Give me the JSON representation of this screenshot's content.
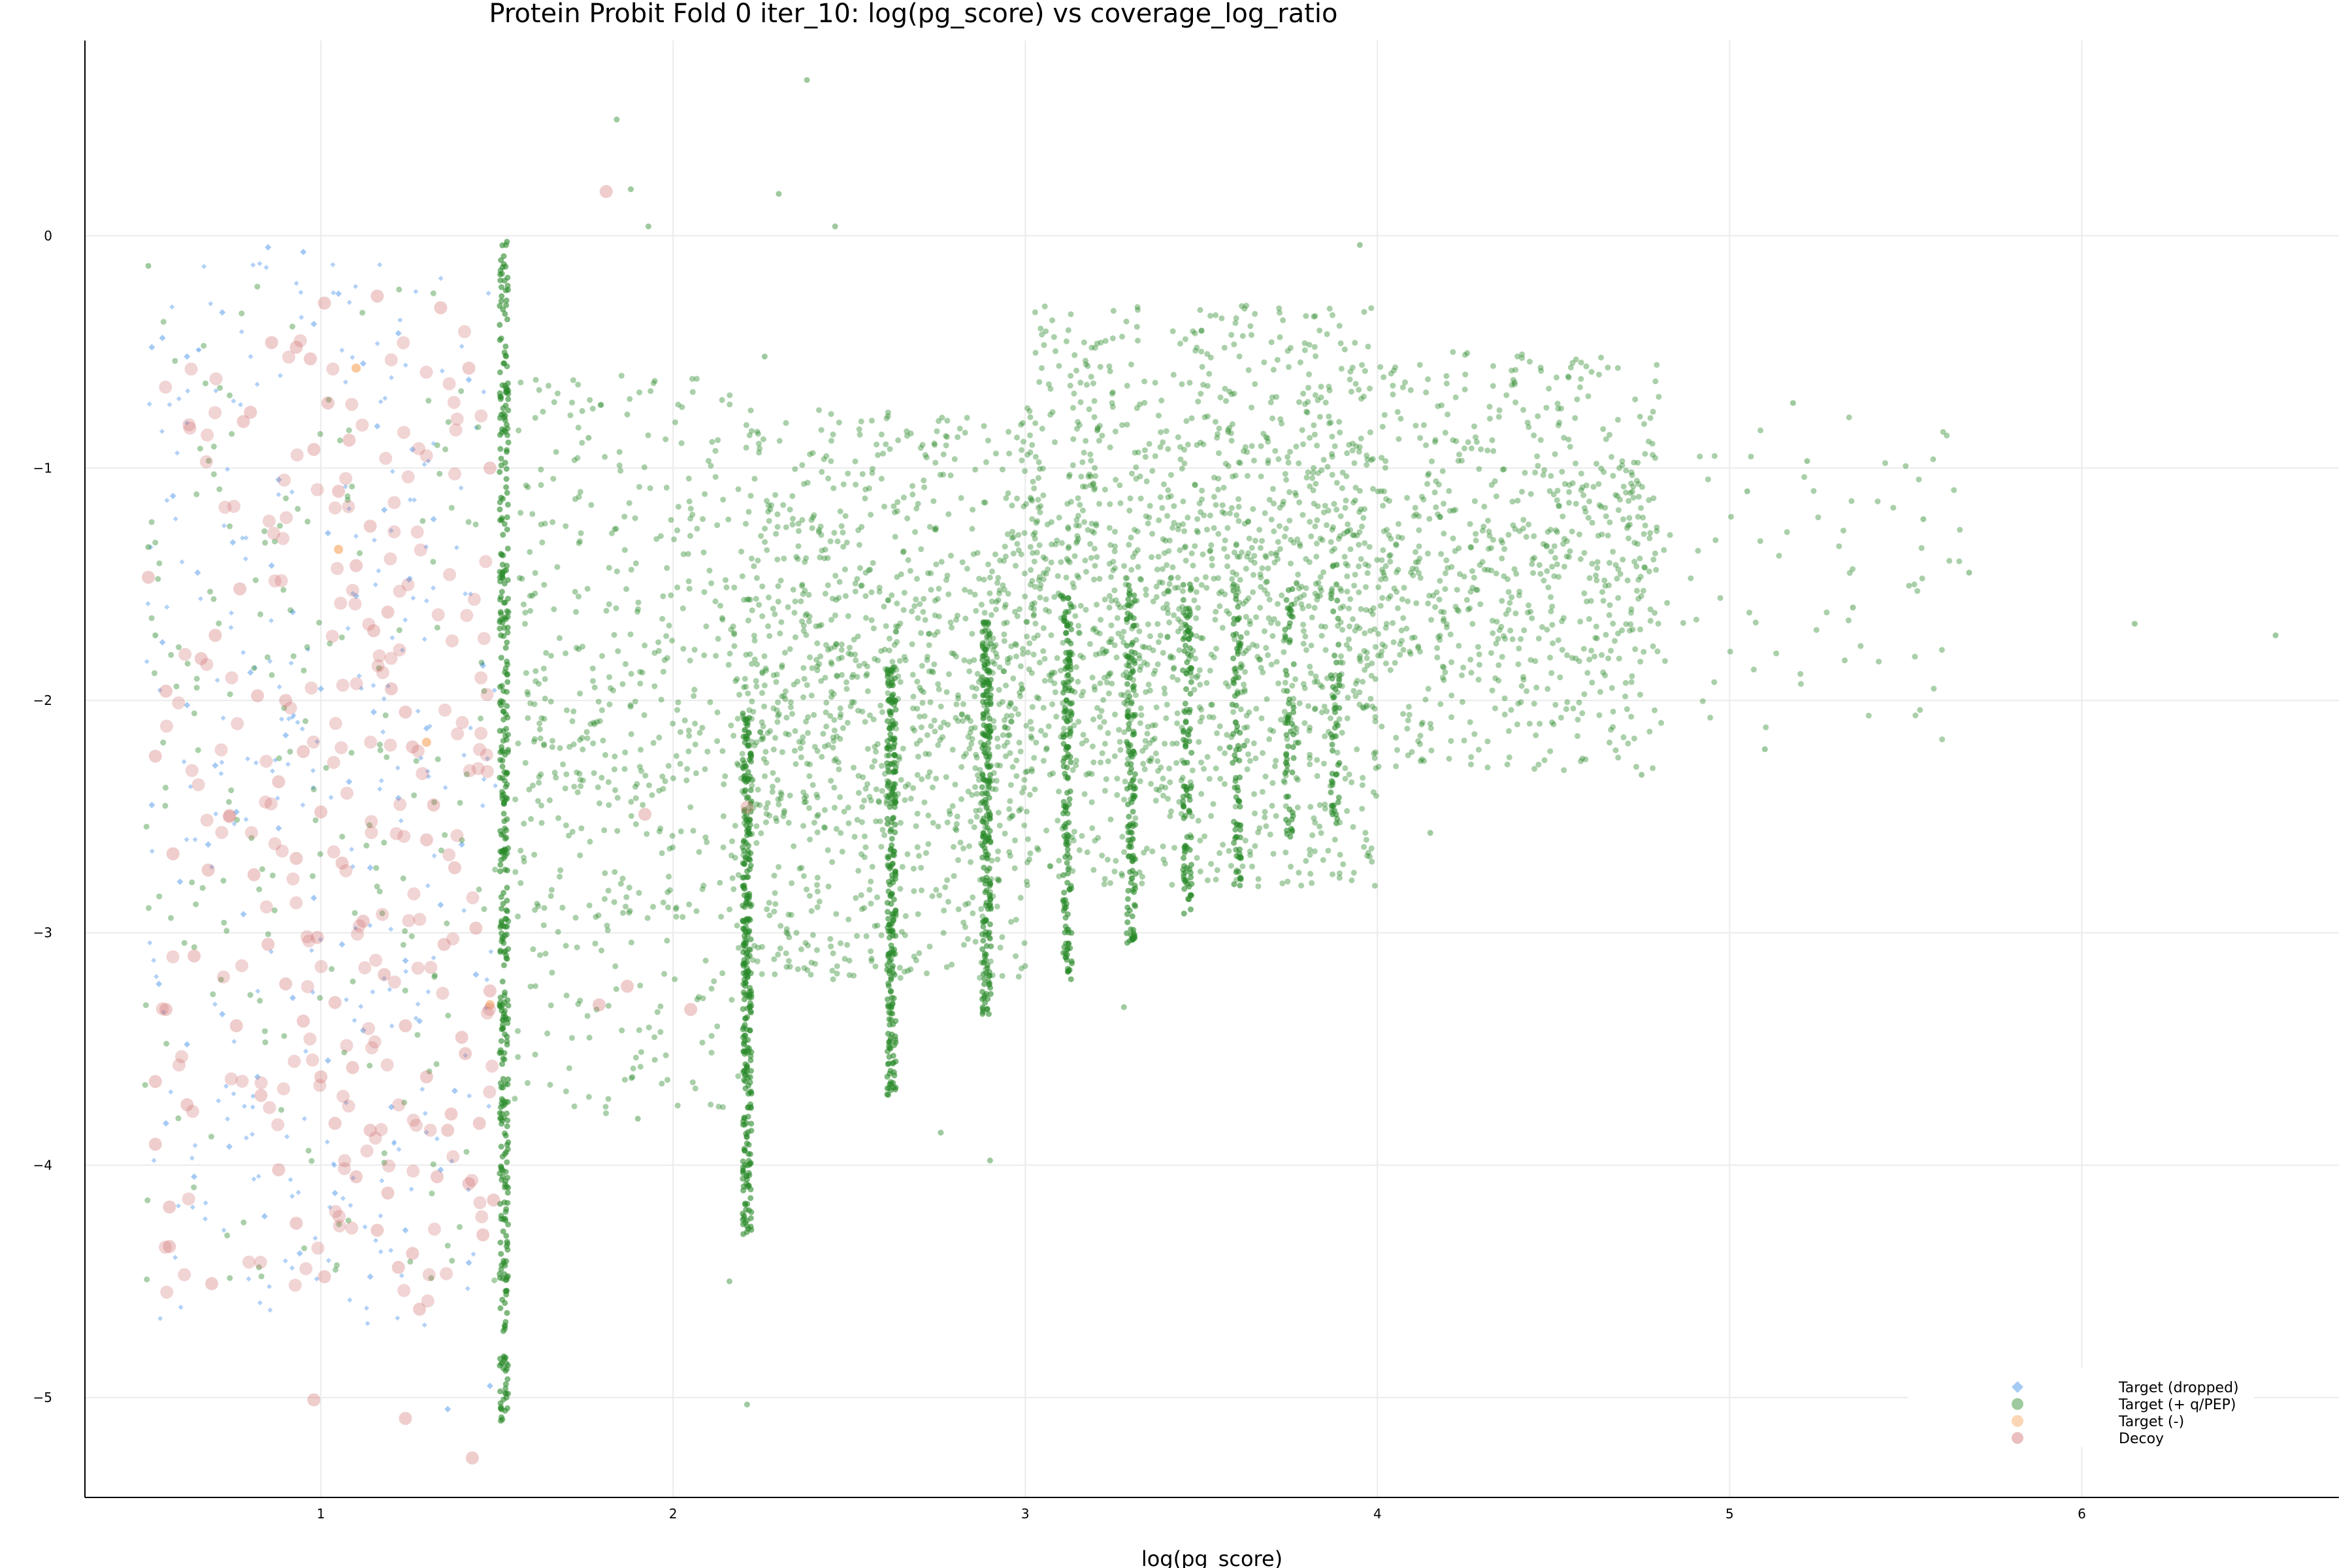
{
  "chart_data": {
    "type": "scatter",
    "title": "Protein Probit Fold 0 iter_10: log(pg_score) vs coverage_log_ratio",
    "xlabel": "log(pg_score)",
    "ylabel": "",
    "xlim": [
      0.33,
      6.73
    ],
    "ylim": [
      -5.43,
      0.84
    ],
    "xticks": [
      1,
      2,
      3,
      4,
      5,
      6
    ],
    "yticks": [
      0,
      -1,
      -2,
      -3,
      -4,
      -5
    ],
    "grid": true,
    "legend_position": "bottom-right",
    "series": [
      {
        "name": "Target (dropped)",
        "color": "#7fb3f0",
        "marker": "diamond",
        "points": [
          [
            0.52,
            -0.48
          ],
          [
            0.55,
            -0.44
          ],
          [
            0.62,
            -0.52
          ],
          [
            0.72,
            -0.33
          ],
          [
            0.85,
            -0.05
          ],
          [
            0.95,
            -0.07
          ],
          [
            0.98,
            -0.38
          ],
          [
            1.05,
            -0.25
          ],
          [
            1.12,
            -0.55
          ],
          [
            1.22,
            -0.42
          ],
          [
            0.58,
            -1.12
          ],
          [
            0.65,
            -1.45
          ],
          [
            0.75,
            -1.32
          ],
          [
            0.88,
            -1.05
          ],
          [
            0.92,
            -1.62
          ],
          [
            1.02,
            -1.28
          ],
          [
            1.1,
            -1.55
          ],
          [
            1.18,
            -1.18
          ],
          [
            1.25,
            -1.48
          ],
          [
            1.32,
            -1.22
          ],
          [
            0.55,
            -1.75
          ],
          [
            0.62,
            -2.02
          ],
          [
            0.7,
            -2.28
          ],
          [
            0.8,
            -1.88
          ],
          [
            0.9,
            -2.15
          ],
          [
            1.0,
            -1.95
          ],
          [
            1.08,
            -2.35
          ],
          [
            1.15,
            -2.05
          ],
          [
            1.22,
            -2.42
          ],
          [
            1.3,
            -2.12
          ],
          [
            0.52,
            -2.45
          ],
          [
            0.6,
            -2.78
          ],
          [
            0.68,
            -2.62
          ],
          [
            0.78,
            -2.92
          ],
          [
            0.88,
            -2.55
          ],
          [
            0.98,
            -2.85
          ],
          [
            1.06,
            -3.05
          ],
          [
            1.14,
            -2.72
          ],
          [
            1.24,
            -3.12
          ],
          [
            1.34,
            -2.88
          ],
          [
            0.54,
            -3.22
          ],
          [
            0.62,
            -3.48
          ],
          [
            0.72,
            -3.35
          ],
          [
            0.82,
            -3.62
          ],
          [
            0.92,
            -3.28
          ],
          [
            1.02,
            -3.55
          ],
          [
            1.12,
            -3.42
          ],
          [
            1.2,
            -3.75
          ],
          [
            1.28,
            -3.38
          ],
          [
            1.38,
            -3.68
          ],
          [
            0.56,
            -3.82
          ],
          [
            0.64,
            -4.05
          ],
          [
            0.74,
            -3.92
          ],
          [
            0.84,
            -4.22
          ],
          [
            0.94,
            -4.38
          ],
          [
            1.04,
            -4.12
          ],
          [
            1.14,
            -4.48
          ],
          [
            1.24,
            -4.28
          ],
          [
            1.34,
            -4.02
          ],
          [
            1.42,
            -4.42
          ],
          [
            1.48,
            -4.95
          ],
          [
            1.36,
            -5.05
          ],
          [
            0.76,
            -2.48
          ],
          [
            0.86,
            -1.42
          ],
          [
            1.16,
            -0.82
          ],
          [
            1.26,
            -0.92
          ],
          [
            1.42,
            -0.62
          ],
          [
            1.46,
            -1.85
          ],
          [
            1.4,
            -2.62
          ],
          [
            1.44,
            -3.18
          ]
        ]
      },
      {
        "name": "Target (+ q/PEP)",
        "color": "#2a8a2a",
        "marker": "circle",
        "bands": [
          {
            "x": 1.52,
            "ymin": -5.1,
            "ymax": -0.02,
            "density": 420
          },
          {
            "x": 2.21,
            "ymin": -4.3,
            "ymax": -2.05,
            "density": 300
          },
          {
            "x": 2.62,
            "ymin": -3.7,
            "ymax": -1.85,
            "density": 240
          },
          {
            "x": 2.89,
            "ymin": -3.35,
            "ymax": -1.65,
            "density": 220
          },
          {
            "x": 3.12,
            "ymin": -3.2,
            "ymax": -1.55,
            "density": 160
          },
          {
            "x": 3.3,
            "ymin": -3.05,
            "ymax": -1.5,
            "density": 140
          },
          {
            "x": 3.46,
            "ymin": -2.95,
            "ymax": -1.5,
            "density": 110
          },
          {
            "x": 3.6,
            "ymin": -2.8,
            "ymax": -1.5,
            "density": 80
          },
          {
            "x": 3.75,
            "ymin": -2.6,
            "ymax": -1.45,
            "density": 60
          },
          {
            "x": 3.88,
            "ymin": -2.55,
            "ymax": -1.4,
            "density": 50
          }
        ],
        "clouds": [
          {
            "xmin": 1.55,
            "xmax": 2.2,
            "ymin": -3.8,
            "ymax": -0.6,
            "count": 520
          },
          {
            "xmin": 2.2,
            "xmax": 3.0,
            "ymin": -3.2,
            "ymax": -0.75,
            "count": 1100
          },
          {
            "xmin": 3.0,
            "xmax": 4.0,
            "ymin": -2.8,
            "ymax": -0.3,
            "count": 1500
          },
          {
            "xmin": 4.0,
            "xmax": 4.8,
            "ymin": -2.3,
            "ymax": -0.5,
            "count": 700
          },
          {
            "xmin": 4.8,
            "xmax": 5.7,
            "ymin": -2.2,
            "ymax": -0.75,
            "count": 70
          },
          {
            "xmin": 0.5,
            "xmax": 1.5,
            "ymin": -4.5,
            "ymax": -0.2,
            "count": 200
          }
        ],
        "outliers": [
          [
            1.84,
            0.5
          ],
          [
            2.38,
            0.67
          ],
          [
            1.88,
            0.2
          ],
          [
            2.3,
            0.18
          ],
          [
            2.46,
            0.04
          ],
          [
            1.93,
            0.04
          ],
          [
            3.95,
            -0.04
          ],
          [
            1.76,
            -0.87
          ],
          [
            2.26,
            -0.52
          ],
          [
            2.16,
            -4.5
          ],
          [
            2.21,
            -5.03
          ],
          [
            2.76,
            -3.86
          ],
          [
            2.9,
            -3.98
          ],
          [
            6.15,
            -1.67
          ],
          [
            6.55,
            -1.72
          ],
          [
            5.05,
            -1.1
          ],
          [
            5.22,
            -0.97
          ],
          [
            5.18,
            -0.72
          ],
          [
            5.68,
            -1.45
          ],
          [
            5.55,
            -1.22
          ],
          [
            5.35,
            -1.6
          ],
          [
            5.1,
            -2.21
          ],
          [
            0.51,
            -0.13
          ],
          [
            0.51,
            -1.34
          ],
          [
            0.53,
            -1.72
          ],
          [
            1.9,
            -3.8
          ],
          [
            4.75,
            -2.32
          ],
          [
            4.15,
            -2.57
          ],
          [
            3.28,
            -3.32
          ]
        ]
      },
      {
        "name": "Target (-)",
        "color": "#f5a45a",
        "marker": "circle",
        "points": [
          [
            1.1,
            -0.57
          ],
          [
            1.05,
            -1.35
          ],
          [
            1.3,
            -2.18
          ],
          [
            1.48,
            -3.31
          ]
        ]
      },
      {
        "name": "Decoy",
        "color": "#d27070",
        "marker": "circle",
        "points": [
          [
            1.81,
            0.19
          ],
          [
            0.51,
            -1.47
          ],
          [
            0.53,
            -2.24
          ],
          [
            0.56,
            -1.96
          ],
          [
            0.58,
            -2.66
          ],
          [
            0.56,
            -3.33
          ],
          [
            0.53,
            -3.64
          ],
          [
            0.53,
            -3.91
          ],
          [
            0.57,
            -4.35
          ],
          [
            0.57,
            -4.18
          ],
          [
            0.69,
            -4.51
          ],
          [
            0.62,
            -3.74
          ],
          [
            0.64,
            -3.1
          ],
          [
            0.68,
            -2.73
          ],
          [
            0.66,
            -1.82
          ],
          [
            0.7,
            -1.72
          ],
          [
            0.77,
            -1.52
          ],
          [
            0.78,
            -0.8
          ],
          [
            0.8,
            -0.76
          ],
          [
            0.86,
            -0.46
          ],
          [
            0.93,
            -0.48
          ],
          [
            0.97,
            -0.53
          ],
          [
            1.01,
            -0.29
          ],
          [
            1.16,
            -0.26
          ],
          [
            1.34,
            -0.31
          ],
          [
            1.42,
            -0.57
          ],
          [
            1.48,
            -1.0
          ],
          [
            0.98,
            -5.01
          ],
          [
            1.24,
            -5.09
          ],
          [
            1.43,
            -5.26
          ],
          [
            1.79,
            -3.31
          ],
          [
            1.87,
            -3.23
          ],
          [
            2.05,
            -3.33
          ],
          [
            1.92,
            -2.49
          ],
          [
            2.21,
            -2.46
          ],
          [
            0.74,
            -2.5
          ],
          [
            0.81,
            -2.75
          ],
          [
            0.85,
            -3.05
          ],
          [
            0.9,
            -3.22
          ],
          [
            0.95,
            -3.38
          ],
          [
            1.0,
            -3.62
          ],
          [
            1.04,
            -3.82
          ],
          [
            1.1,
            -4.05
          ],
          [
            1.16,
            -4.28
          ],
          [
            1.22,
            -4.44
          ],
          [
            1.28,
            -4.62
          ],
          [
            0.9,
            -2.0
          ],
          [
            0.95,
            -2.22
          ],
          [
            1.0,
            -2.48
          ],
          [
            1.06,
            -2.7
          ],
          [
            1.12,
            -2.95
          ],
          [
            1.18,
            -3.18
          ],
          [
            1.24,
            -3.4
          ],
          [
            1.3,
            -3.62
          ],
          [
            1.36,
            -3.85
          ],
          [
            1.42,
            -4.08
          ],
          [
            1.46,
            -4.3
          ],
          [
            1.05,
            -1.1
          ],
          [
            1.1,
            -1.42
          ],
          [
            1.15,
            -1.7
          ],
          [
            1.2,
            -1.95
          ],
          [
            1.26,
            -2.2
          ],
          [
            1.32,
            -2.45
          ],
          [
            1.38,
            -2.72
          ],
          [
            1.44,
            -2.98
          ],
          [
            1.48,
            -3.25
          ],
          [
            0.98,
            -0.92
          ],
          [
            1.02,
            -0.72
          ],
          [
            1.08,
            -0.88
          ],
          [
            1.14,
            -1.25
          ],
          [
            1.19,
            -1.62
          ],
          [
            1.24,
            -2.05
          ],
          [
            1.3,
            -2.6
          ],
          [
            1.35,
            -3.05
          ],
          [
            1.4,
            -3.45
          ],
          [
            1.45,
            -3.82
          ],
          [
            1.49,
            -4.15
          ],
          [
            0.82,
            -1.98
          ],
          [
            0.88,
            -2.35
          ],
          [
            0.93,
            -2.68
          ],
          [
            0.99,
            -3.02
          ],
          [
            1.04,
            -3.3
          ],
          [
            1.09,
            -3.58
          ],
          [
            1.14,
            -3.85
          ],
          [
            1.19,
            -4.12
          ],
          [
            1.26,
            -4.38
          ],
          [
            1.33,
            -4.05
          ],
          [
            1.37,
            -3.78
          ],
          [
            1.41,
            -3.52
          ],
          [
            0.76,
            -3.4
          ],
          [
            0.83,
            -3.7
          ],
          [
            0.88,
            -4.02
          ],
          [
            0.93,
            -4.25
          ],
          [
            1.01,
            -4.48
          ]
        ]
      }
    ]
  }
}
